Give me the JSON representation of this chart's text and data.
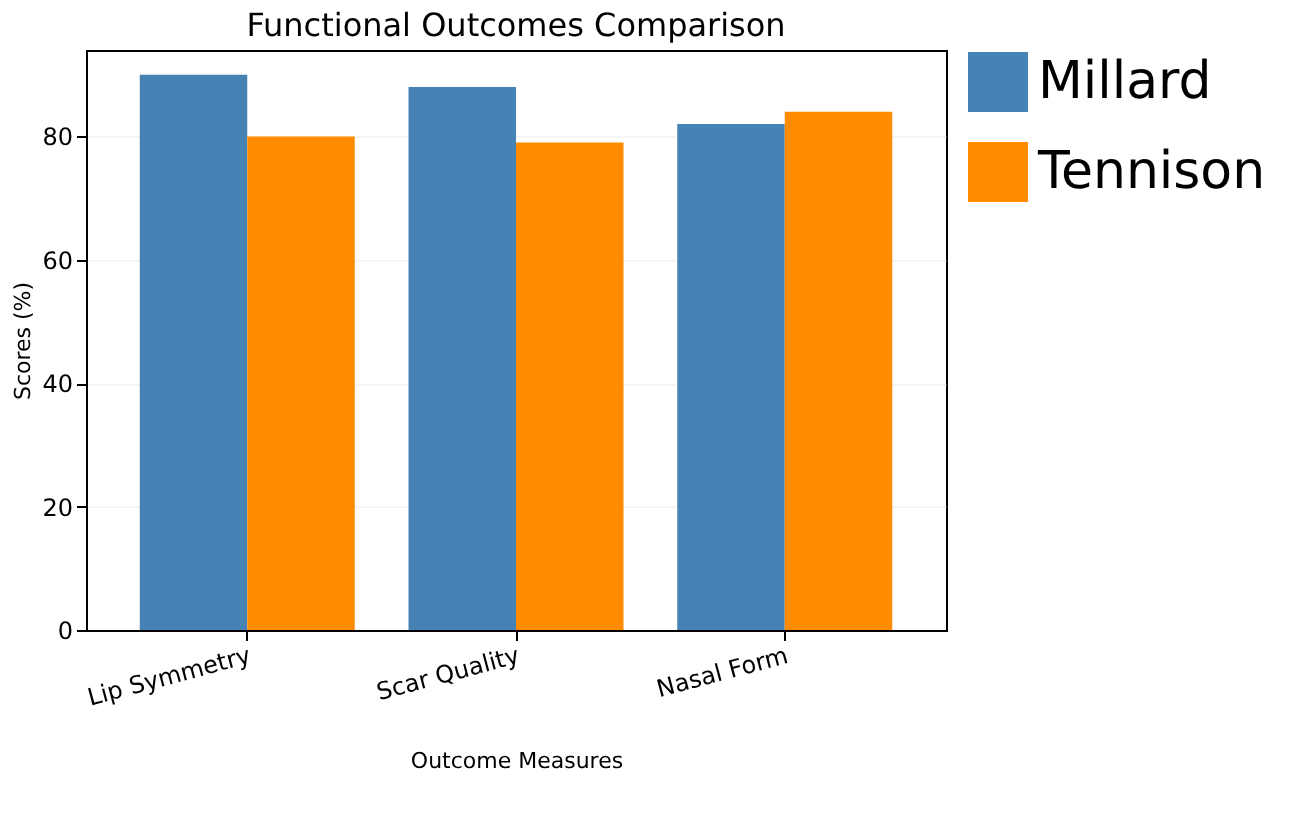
{
  "chart_data": {
    "type": "bar",
    "title": "Functional Outcomes Comparison",
    "xlabel": "Outcome Measures",
    "ylabel": "Scores (%)",
    "categories": [
      "Lip Symmetry",
      "Scar Quality",
      "Nasal Form"
    ],
    "series": [
      {
        "name": "Millard",
        "color": "#4682b4",
        "values": [
          90,
          88,
          82
        ]
      },
      {
        "name": "Tennison",
        "color": "#ff8c00",
        "values": [
          80,
          79,
          84
        ]
      }
    ],
    "ylim": [
      0,
      94
    ],
    "yticks": [
      0,
      20,
      40,
      60,
      80
    ],
    "grid": "y",
    "legend": "top right"
  }
}
